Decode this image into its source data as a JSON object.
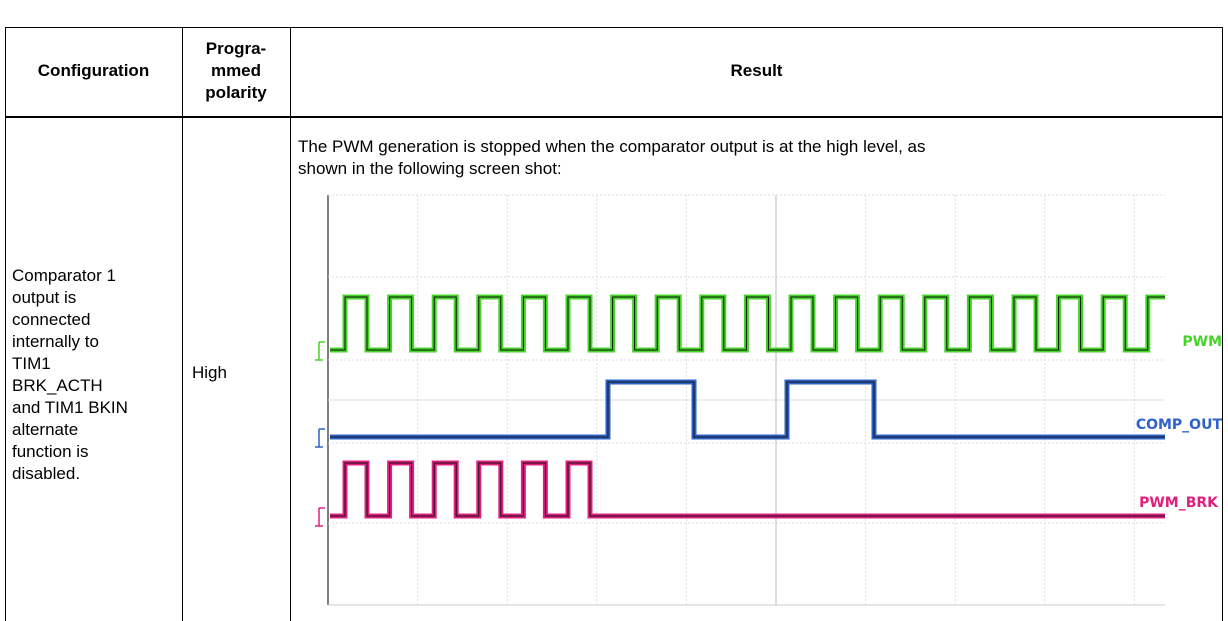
{
  "header": {
    "configuration": "Configuration",
    "polarity": [
      "Progra-",
      "mmed",
      "polarity"
    ],
    "result": "Result"
  },
  "row": {
    "configuration": [
      "Comparator 1",
      "output is",
      "connected",
      "internally to",
      "TIM1",
      "BRK_ACTH",
      "and TIM1 BKIN",
      "alternate",
      "function is",
      "disabled."
    ],
    "polarity": "High",
    "result": [
      "The PWM generation is stopped when the comparator output is at the high level, as",
      "shown in the following screen shot:"
    ],
    "traces": [
      "PWM",
      "COMP_OUT",
      "PWM_BRK"
    ]
  }
}
